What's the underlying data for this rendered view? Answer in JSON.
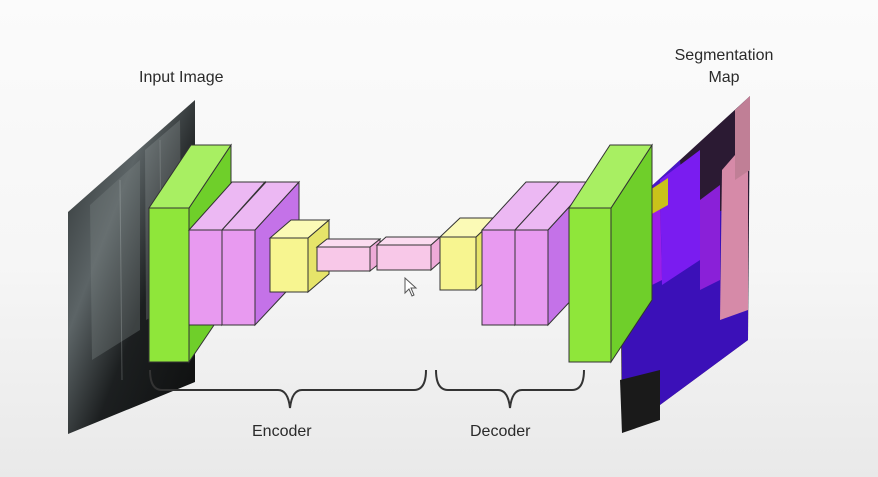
{
  "labels": {
    "input_image": "Input Image",
    "segmentation_line1": "Segmentation",
    "segmentation_line2": "Map",
    "encoder": "Encoder",
    "decoder": "Decoder"
  },
  "colors": {
    "green_face": "#8fe63a",
    "green_side": "#6fcf2a",
    "violet_face": "#e89af0",
    "violet_side": "#c472e8",
    "yellow_face": "#f7f590",
    "yellow_side": "#e6e46a",
    "pink_face": "#f8c8e8",
    "pink_side": "#eeaad8",
    "outline": "#333333"
  }
}
